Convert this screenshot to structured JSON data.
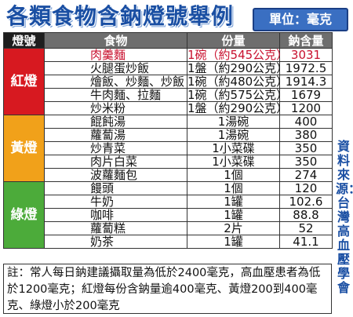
{
  "title": "各類食物含鈉燈號舉例",
  "unit_label": "單位：毫克",
  "headers": {
    "group": "燈號",
    "food": "食物",
    "serving": "份量",
    "sodium": "鈉含量"
  },
  "groups": [
    {
      "label": "紅燈",
      "color": "#d71920",
      "rows": [
        {
          "food": "肉羹麵",
          "serving": "1碗（約545公克）",
          "sodium": "3031",
          "highlight": true
        },
        {
          "food": "火腿蛋炒飯",
          "serving": "1盤（約290公克）",
          "sodium": "1972.5"
        },
        {
          "food": "燴飯、炒麵、炒飯",
          "serving": "1碗（約480公克）",
          "sodium": "1914.3"
        },
        {
          "food": "牛肉麵、拉麵",
          "serving": "1碗（約575公克）",
          "sodium": "1679"
        },
        {
          "food": "炒米粉",
          "serving": "1盤（約290公克）",
          "sodium": "1200"
        }
      ]
    },
    {
      "label": "黃燈",
      "color": "#f1a11a",
      "rows": [
        {
          "food": "餛飩湯",
          "serving": "1湯碗",
          "sodium": "400"
        },
        {
          "food": "蘿蔔湯",
          "serving": "1湯碗",
          "sodium": "380"
        },
        {
          "food": "炒青菜",
          "serving": "1小菜碟",
          "sodium": "350"
        },
        {
          "food": "肉片白菜",
          "serving": "1小菜碟",
          "sodium": "350"
        },
        {
          "food": "波蘿麵包",
          "serving": "1個",
          "sodium": "274"
        }
      ]
    },
    {
      "label": "綠燈",
      "color": "#4cab3a",
      "rows": [
        {
          "food": "饅頭",
          "serving": "1個",
          "sodium": "120"
        },
        {
          "food": "牛奶",
          "serving": "1罐",
          "sodium": "102.6"
        },
        {
          "food": "咖啡",
          "serving": "1罐",
          "sodium": "88.8"
        },
        {
          "food": "蘿蔔糕",
          "serving": "2片",
          "sodium": "52"
        },
        {
          "food": "奶茶",
          "serving": "1罐",
          "sodium": "41.1"
        }
      ]
    }
  ],
  "source": "資料來源：台灣高血壓學會",
  "note": "註：常人每日鈉建議攝取量為低於2400毫克，高血壓患者為低於1200毫克；紅燈每份含鈉量逾400毫克、黃燈200到400毫克、綠燈小於200毫克"
}
